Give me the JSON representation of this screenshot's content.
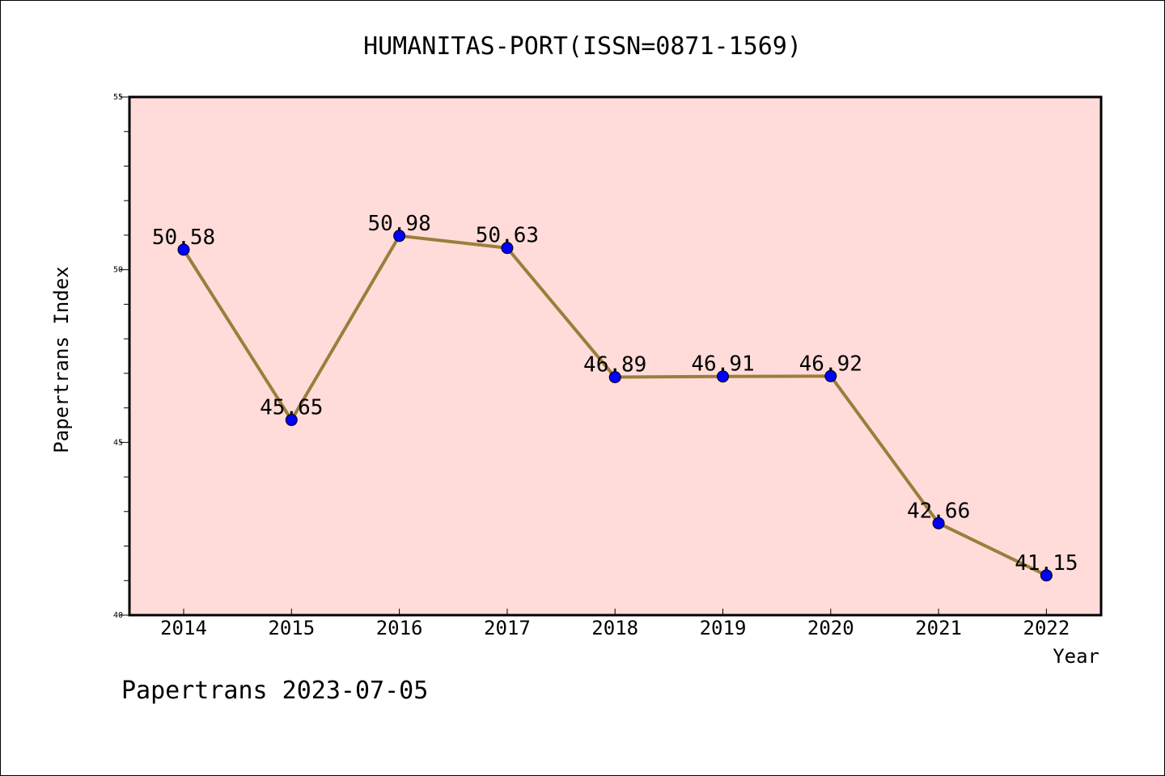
{
  "chart_data": {
    "type": "line",
    "title": "HUMANITAS-PORT(ISSN=0871-1569)",
    "xlabel": "Year",
    "ylabel": "Papertrans Index",
    "x": [
      "2014",
      "2015",
      "2016",
      "2017",
      "2018",
      "2019",
      "2020",
      "2021",
      "2022"
    ],
    "series": [
      {
        "values": [
          50.58,
          45.65,
          50.98,
          50.63,
          46.89,
          46.91,
          46.92,
          42.66,
          41.15
        ],
        "labels": [
          "50.58",
          "45.65",
          "50.98",
          "50.63",
          "46.89",
          "46.91",
          "46.92",
          "42.66",
          "41.15"
        ],
        "line_color": "#9a7e3c",
        "marker_color": "#0000ff"
      }
    ],
    "ylim": [
      40,
      55
    ],
    "y_major_ticks": [
      40,
      45,
      50,
      55
    ],
    "y_minor_step": 1,
    "grid": false,
    "plot_background": "#ffdcd9"
  },
  "footer": {
    "text": "Papertrans 2023-07-05"
  }
}
